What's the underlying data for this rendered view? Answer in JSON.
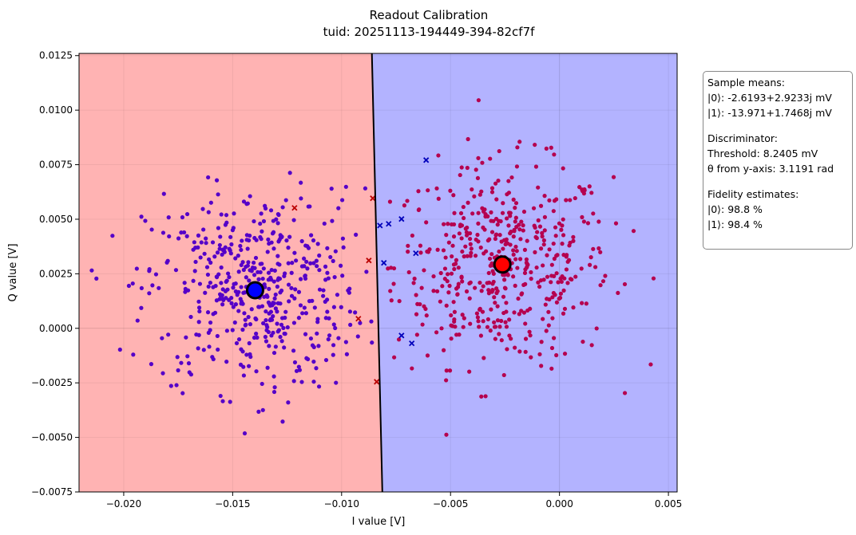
{
  "chart_data": {
    "type": "scatter",
    "title": "Readout Calibration",
    "subtitle": "tuid: 20251113-194449-394-82cf7f",
    "xlabel": "I value [V]",
    "ylabel": "Q value [V]",
    "xlim": [
      -0.02205,
      0.0054
    ],
    "ylim": [
      -0.0075,
      0.0126
    ],
    "grid": true,
    "xticks": [
      "−0.020",
      "−0.015",
      "−0.010",
      "−0.005",
      "0.000",
      "0.005"
    ],
    "xtick_values": [
      -0.02,
      -0.015,
      -0.01,
      -0.005,
      0.0,
      0.005
    ],
    "yticks": [
      "−0.0075",
      "−0.0050",
      "−0.0025",
      "0.0000",
      "0.0025",
      "0.0050",
      "0.0075",
      "0.0100",
      "0.0125"
    ],
    "ytick_values": [
      -0.0075,
      -0.005,
      -0.0025,
      0,
      0.0025,
      0.005,
      0.0075,
      0.01,
      0.0125
    ],
    "decision_boundary": [
      [
        -0.00861,
        0.0126
      ],
      [
        -0.00813,
        -0.0075
      ]
    ],
    "regions": {
      "state0_color": "#b3b3ff",
      "state1_color": "#ffb3b3"
    },
    "states": [
      {
        "label": "|0⟩",
        "mean": [
          -0.0026193,
          0.0029233
        ],
        "point_color": "#b5004f",
        "mean_marker_color": "#ff0000",
        "estimated_std": [
          0.0025,
          0.0023
        ],
        "estimated_count": 500
      },
      {
        "label": "|1⟩",
        "mean": [
          -0.013971,
          0.0017468
        ],
        "point_color": "#5500c8",
        "mean_marker_color": "#0000ff",
        "estimated_std": [
          0.0025,
          0.0023
        ],
        "estimated_count": 500
      }
    ],
    "misclassified": {
      "state0_as_1": {
        "color": "#0000bb",
        "points": [
          [
            -0.00612,
            0.00771
          ],
          [
            -0.00824,
            0.00471
          ],
          [
            -0.00784,
            0.00479
          ],
          [
            -0.00725,
            0.00501
          ],
          [
            -0.00806,
            0.003
          ],
          [
            -0.00659,
            0.00344
          ],
          [
            -0.00725,
            -0.00033
          ],
          [
            -0.00678,
            -0.00069
          ]
        ]
      },
      "state1_as_0": {
        "color": "#bb0000",
        "points": [
          [
            -0.00857,
            0.00596
          ],
          [
            -0.01216,
            0.00552
          ],
          [
            -0.00875,
            0.00311
          ],
          [
            -0.00923,
            0.00044
          ],
          [
            -0.00839,
            -0.00245
          ]
        ]
      }
    }
  },
  "info": {
    "means_header": "Sample means:",
    "mean0": "|0⟩: -2.6193+2.9233j mV",
    "mean1": "|1⟩: -13.971+1.7468j mV",
    "disc_header": "Discriminator:",
    "threshold": "Threshold: 8.2405 mV",
    "theta": "θ from y-axis: 3.1191 rad",
    "fid_header": "Fidelity estimates:",
    "fid0": "|0⟩: 98.8 %",
    "fid1": "|1⟩: 98.4 %"
  }
}
